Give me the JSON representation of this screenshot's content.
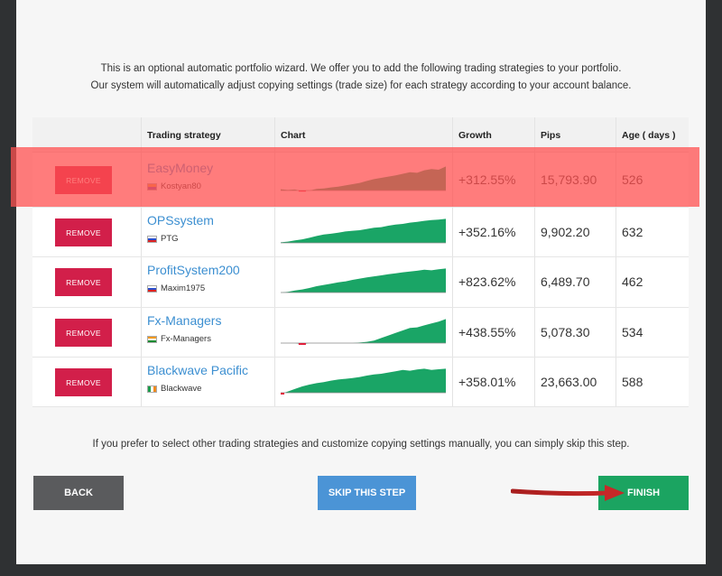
{
  "intro": {
    "line1": "This is an optional automatic portfolio wizard. We offer you to add the following trading strategies to your portfolio.",
    "line2": "Our system will automatically adjust copying settings (trade size) for each strategy according to your account balance."
  },
  "table": {
    "headers": {
      "strategy": "Trading strategy",
      "chart": "Chart",
      "growth": "Growth",
      "pips": "Pips",
      "age": "Age ( days )"
    },
    "rows": [
      {
        "remove_label": "REMOVE",
        "name": "EasyMoney",
        "owner": "Kostyan80",
        "flag": "flag-ar",
        "growth": "+312.55%",
        "pips": "15,793.90",
        "age": "526",
        "chart_trend": [
          0.05,
          0.02,
          0.04,
          -0.03,
          0.0,
          0.06,
          0.08,
          0.12,
          0.15,
          0.2,
          0.25,
          0.3,
          0.38,
          0.45,
          0.5,
          0.55,
          0.6,
          0.66,
          0.72,
          0.7,
          0.8,
          0.85,
          0.82,
          0.95
        ]
      },
      {
        "remove_label": "REMOVE",
        "name": "OPSsystem",
        "owner": "PTG",
        "flag": "flag-ru",
        "growth": "+352.16%",
        "pips": "9,902.20",
        "age": "632",
        "chart_trend": [
          0.02,
          0.05,
          0.1,
          0.14,
          0.2,
          0.27,
          0.33,
          0.36,
          0.4,
          0.45,
          0.48,
          0.5,
          0.55,
          0.6,
          0.62,
          0.68,
          0.72,
          0.75,
          0.8,
          0.83,
          0.87,
          0.9,
          0.92,
          0.95
        ]
      },
      {
        "remove_label": "REMOVE",
        "name": "ProfitSystem200",
        "owner": "Maxim1975",
        "flag": "flag-ru",
        "growth": "+823.62%",
        "pips": "6,489.70",
        "age": "462",
        "chart_trend": [
          0.0,
          0.03,
          0.08,
          0.12,
          0.18,
          0.25,
          0.3,
          0.35,
          0.4,
          0.44,
          0.5,
          0.55,
          0.6,
          0.64,
          0.68,
          0.72,
          0.76,
          0.8,
          0.83,
          0.86,
          0.9,
          0.88,
          0.92,
          0.95
        ]
      },
      {
        "remove_label": "REMOVE",
        "name": "Fx-Managers",
        "owner": "Fx-Managers",
        "flag": "flag-in",
        "growth": "+438.55%",
        "pips": "5,078.30",
        "age": "534",
        "chart_trend": [
          0.0,
          0.0,
          0.0,
          -0.05,
          0.0,
          0.0,
          0.0,
          0.0,
          0.0,
          0.0,
          0.0,
          0.02,
          0.05,
          0.1,
          0.2,
          0.3,
          0.4,
          0.5,
          0.6,
          0.62,
          0.7,
          0.78,
          0.85,
          0.95
        ]
      },
      {
        "remove_label": "REMOVE",
        "name": "Blackwave Pacific",
        "owner": "Blackwave",
        "flag": "flag-ie",
        "growth": "+358.01%",
        "pips": "23,663.00",
        "age": "588",
        "chart_trend": [
          -0.05,
          0.05,
          0.15,
          0.25,
          0.32,
          0.38,
          0.42,
          0.48,
          0.52,
          0.55,
          0.58,
          0.62,
          0.68,
          0.72,
          0.75,
          0.8,
          0.85,
          0.9,
          0.87,
          0.92,
          0.95,
          0.9,
          0.93,
          0.95
        ]
      }
    ]
  },
  "outro": "If you prefer to select other trading strategies and customize copying settings manually, you can simply skip this step.",
  "buttons": {
    "back": "BACK",
    "skip": "SKIP THIS STEP",
    "finish": "FINISH"
  },
  "colors": {
    "accent_green": "#1ba461",
    "remove_red": "#d21f4a",
    "link_blue": "#3c8fd1",
    "highlight": "rgba(255,80,80,0.75)"
  }
}
